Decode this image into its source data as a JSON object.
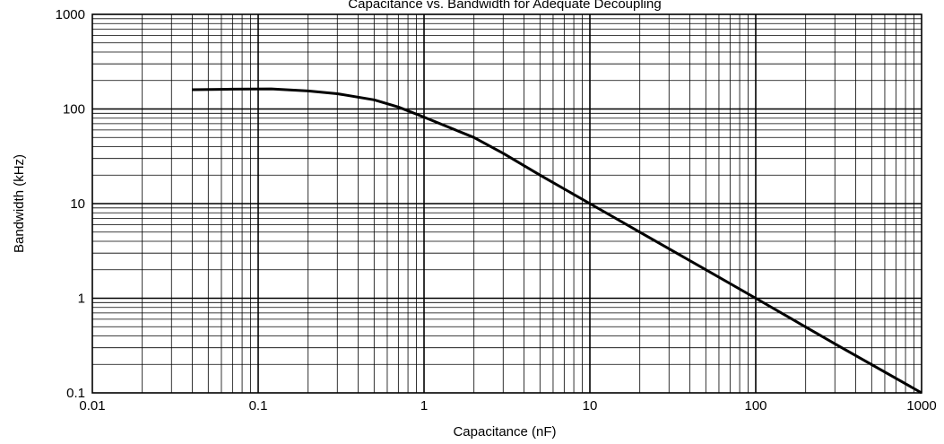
{
  "chart_data": {
    "type": "line",
    "title": "Capacitance vs. Bandwidth for Adequate Decoupling",
    "xlabel": "Capacitance (nF)",
    "ylabel": "Bandwidth (kHz)",
    "xscale": "log",
    "yscale": "log",
    "xlim": [
      0.01,
      1000
    ],
    "ylim": [
      0.1,
      1000
    ],
    "grid": true,
    "x_ticks": [
      "0.01",
      "0.1",
      "1",
      "10",
      "100",
      "1000"
    ],
    "y_ticks": [
      "0.1",
      "1",
      "10",
      "100",
      "1000"
    ],
    "series": [
      {
        "x": [
          0.04,
          0.07,
          0.12,
          0.2,
          0.3,
          0.5,
          0.7,
          1,
          2,
          3,
          5,
          10,
          20,
          50,
          100,
          300,
          1000
        ],
        "y": [
          160,
          162,
          163,
          155,
          145,
          125,
          105,
          82,
          50,
          34,
          20,
          10,
          5,
          2,
          1,
          0.33,
          0.1
        ]
      }
    ]
  }
}
